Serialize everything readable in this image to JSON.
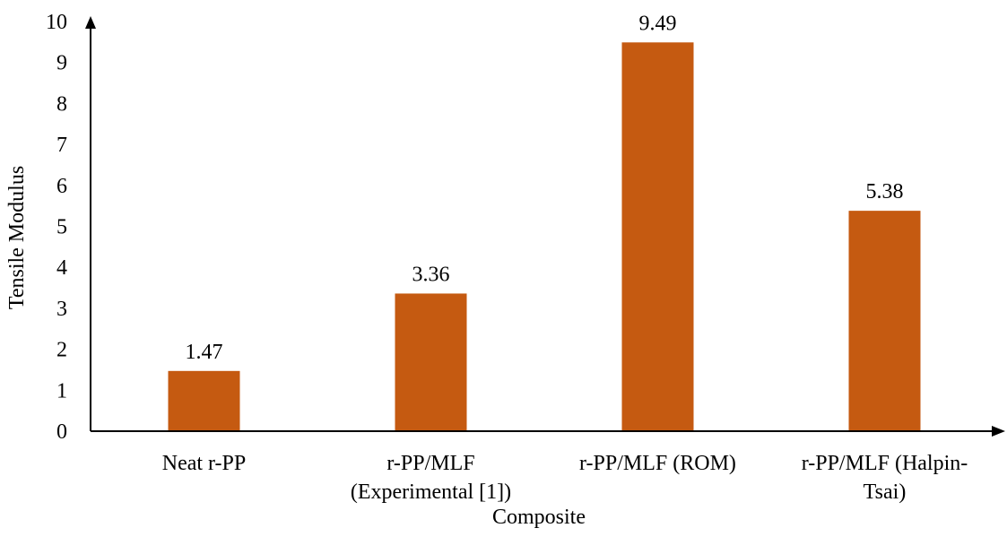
{
  "chart_data": {
    "type": "bar",
    "title": "",
    "xlabel": "Composite",
    "ylabel": "Tensile Modulus",
    "categories": [
      [
        "Neat r-PP"
      ],
      [
        "r-PP/MLF",
        "(Experimental [1])"
      ],
      [
        "r-PP/MLF (ROM)"
      ],
      [
        "r-PP/MLF (Halpin-",
        "Tsai)"
      ]
    ],
    "values": [
      1.47,
      3.36,
      9.49,
      5.38
    ],
    "value_labels": [
      "1.47",
      "3.36",
      "9.49",
      "5.38"
    ],
    "ylim": [
      0,
      10
    ],
    "yticks": [
      "0",
      "1",
      "2",
      "3",
      "4",
      "5",
      "6",
      "7",
      "8",
      "9",
      "10"
    ],
    "grid": false,
    "legend": "none",
    "bar_color": "#C55A11"
  }
}
